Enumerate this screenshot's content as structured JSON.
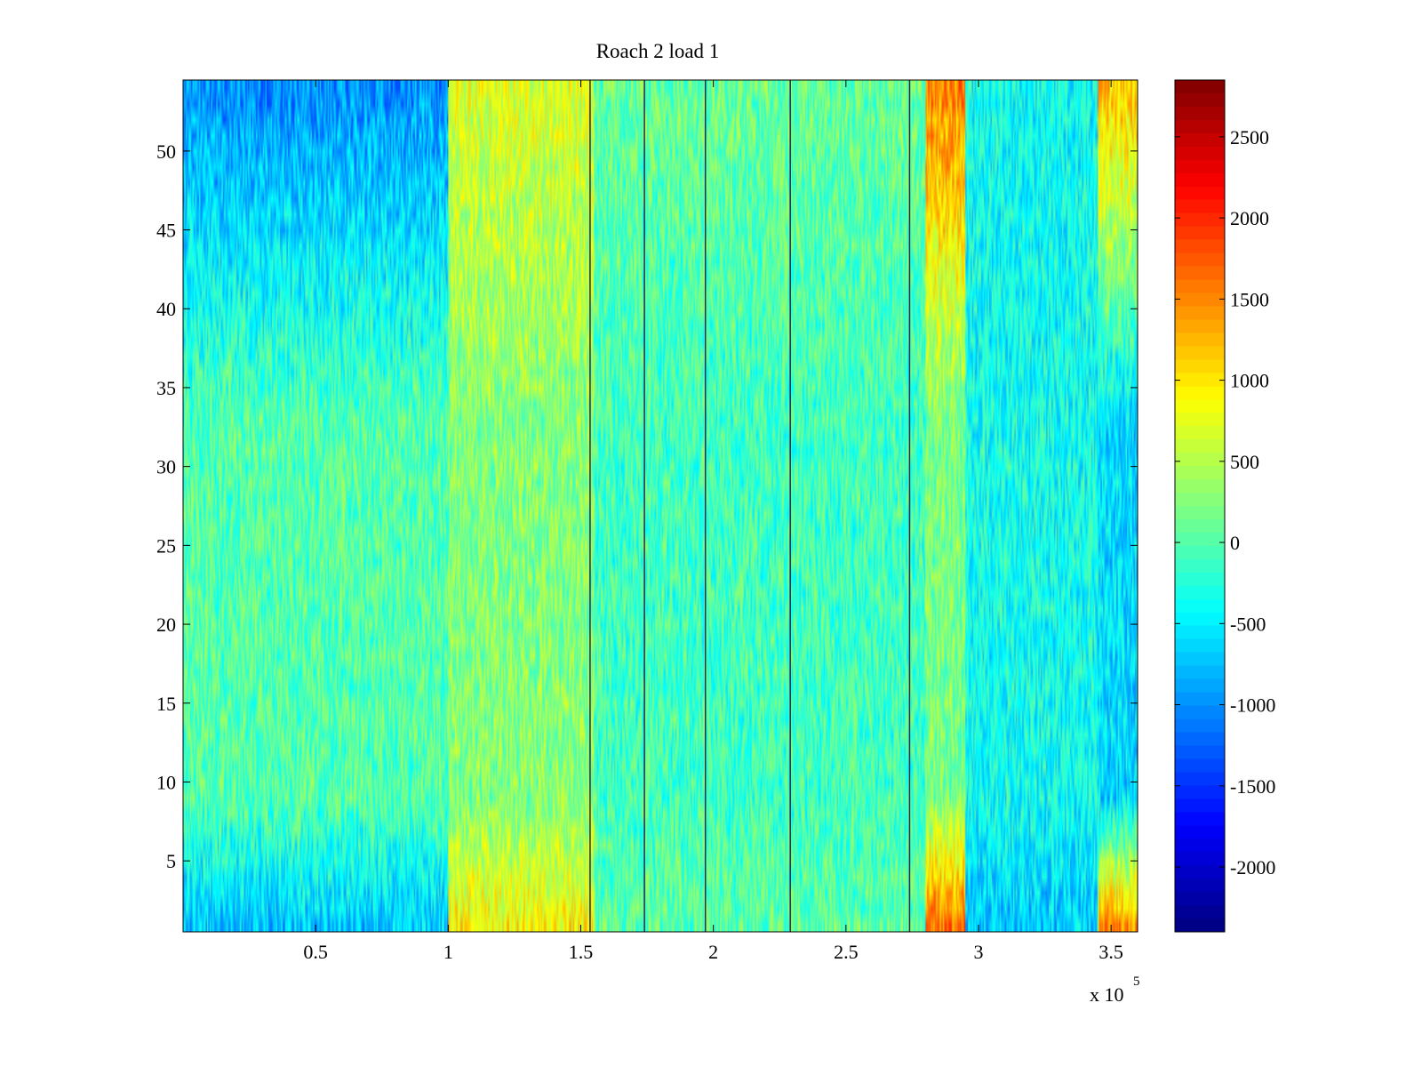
{
  "chart_data": {
    "type": "heatmap",
    "title": "Roach 2 load 1",
    "xlabel": "",
    "ylabel": "",
    "x_exponent_label": {
      "base": "x 10",
      "exp": "5"
    },
    "xlim": [
      0,
      360000
    ],
    "ylim": [
      0.5,
      54.5
    ],
    "rows": 54,
    "x_ticks": [
      50000,
      100000,
      150000,
      200000,
      250000,
      300000,
      350000
    ],
    "x_tick_labels": [
      "0.5",
      "1",
      "1.5",
      "2",
      "2.5",
      "3",
      "3.5"
    ],
    "y_ticks": [
      5,
      10,
      15,
      20,
      25,
      30,
      35,
      40,
      45,
      50
    ],
    "y_tick_labels": [
      "5",
      "10",
      "15",
      "20",
      "25",
      "30",
      "35",
      "40",
      "45",
      "50"
    ],
    "colorbar": {
      "colormap": "jet",
      "clim": [
        -2400,
        2850
      ],
      "ticks": [
        -2000,
        -1500,
        -1000,
        -500,
        0,
        500,
        1000,
        1500,
        2000,
        2500
      ],
      "tick_labels": [
        "-2000",
        "-1500",
        "-1000",
        "-500",
        "0",
        "500",
        "1000",
        "1500",
        "2000",
        "2500"
      ]
    },
    "vertical_lines_x": [
      153500,
      174000,
      197000,
      229000,
      274000
    ],
    "value_profile_by_x": [
      {
        "x": [
          0,
          100000
        ],
        "top_rows": -1000,
        "middle_rows": 0,
        "bottom_rows": -700
      },
      {
        "x": [
          100000,
          155000
        ],
        "top_rows": 700,
        "middle_rows": 250,
        "bottom_rows": 900
      },
      {
        "x": [
          155000,
          280000
        ],
        "top_rows": 100,
        "middle_rows": -100,
        "bottom_rows": 50
      },
      {
        "x": [
          280000,
          295000
        ],
        "top_rows": 1500,
        "middle_rows": 200,
        "bottom_rows": 1600
      },
      {
        "x": [
          295000,
          345000
        ],
        "top_rows": -400,
        "middle_rows": -350,
        "bottom_rows": -700
      },
      {
        "x": [
          345000,
          360000
        ],
        "top_rows": 1200,
        "middle_rows": -600,
        "bottom_rows": 1400
      }
    ],
    "grid": false,
    "legend": "colorbar-right"
  }
}
